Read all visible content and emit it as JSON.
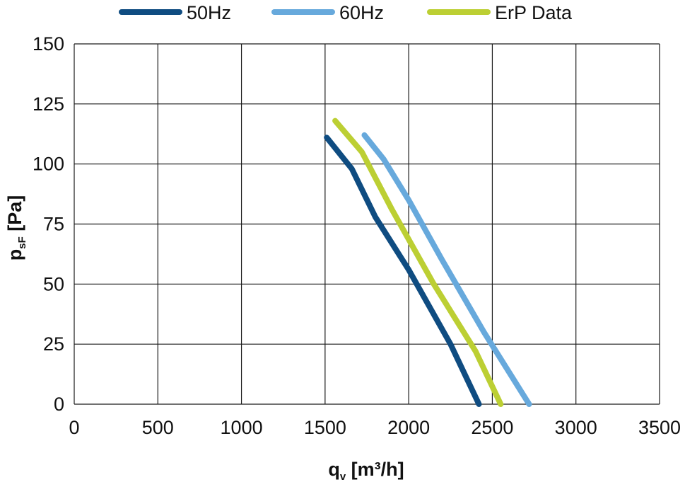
{
  "chart_data": {
    "type": "line",
    "xlim": [
      0,
      3500
    ],
    "ylim": [
      0,
      150
    ],
    "x_ticks": [
      "0",
      "500",
      "1000",
      "1500",
      "2000",
      "2500",
      "3000",
      "3500"
    ],
    "y_ticks": [
      "0",
      "25",
      "50",
      "75",
      "100",
      "125",
      "150"
    ],
    "x_tick_values": [
      0,
      500,
      1000,
      1500,
      2000,
      2500,
      3000,
      3500
    ],
    "y_tick_values": [
      0,
      25,
      50,
      75,
      100,
      125,
      150
    ],
    "grid": true,
    "legend_position": "top",
    "xlabel": {
      "main": "q",
      "sub": "v",
      "rest": " [m³/h]"
    },
    "ylabel": {
      "main": "p",
      "sub": "sF",
      "rest": " [Pa]"
    },
    "series": [
      {
        "name": "50Hz",
        "color": "#0f4c81",
        "x": [
          1510,
          1660,
          1800,
          2000,
          2250,
          2420
        ],
        "y": [
          111,
          98,
          78,
          56,
          25,
          0
        ]
      },
      {
        "name": "60Hz",
        "color": "#67a9dc",
        "x": [
          1735,
          1850,
          2000,
          2200,
          2450,
          2720
        ],
        "y": [
          112,
          102,
          85,
          60,
          30,
          0
        ]
      },
      {
        "name": "ErP Data",
        "color": "#bccf33",
        "x": [
          1560,
          1720,
          1900,
          2150,
          2400,
          2550
        ],
        "y": [
          118,
          105,
          81,
          50,
          22,
          0
        ]
      }
    ]
  }
}
